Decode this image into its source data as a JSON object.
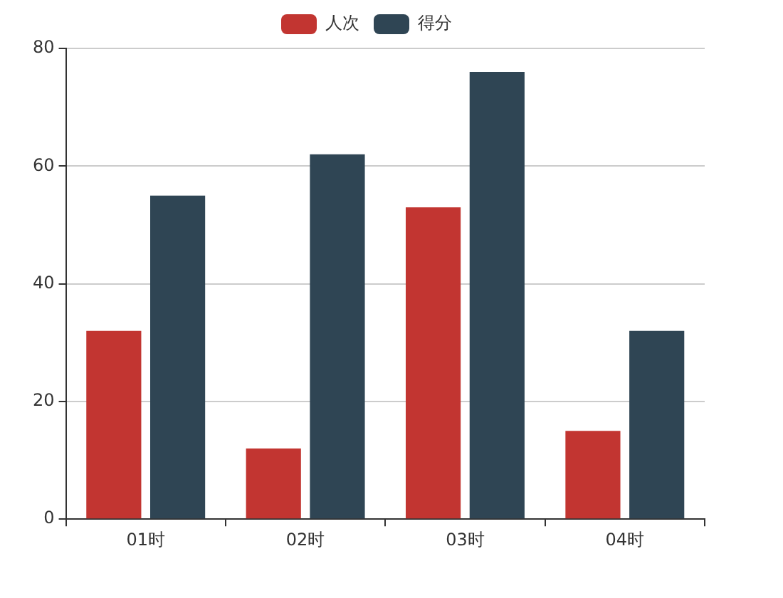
{
  "chart_data": {
    "type": "bar",
    "categories": [
      "01时",
      "02时",
      "03时",
      "04时"
    ],
    "series": [
      {
        "name": "人次",
        "color": "#c23531",
        "values": [
          32,
          12,
          53,
          15
        ]
      },
      {
        "name": "得分",
        "color": "#2f4554",
        "values": [
          55,
          62,
          76,
          32
        ]
      }
    ],
    "ylim": [
      0,
      80
    ],
    "yticks": [
      0,
      20,
      40,
      60,
      80
    ],
    "grid": "y",
    "legend": "top"
  }
}
